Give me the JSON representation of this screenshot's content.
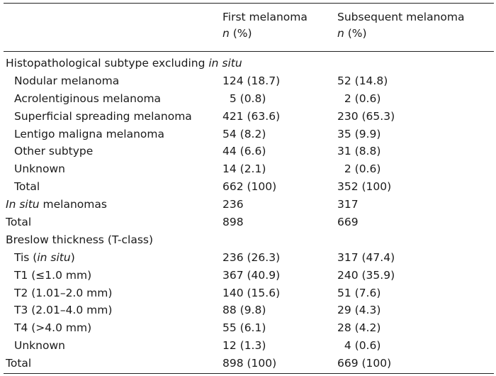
{
  "header": {
    "col1_title": "First melanoma",
    "col1_unit_n": "n",
    "col1_unit_rest": " (%)",
    "col2_title": "Subsequent melanoma",
    "col2_unit_n": "n",
    "col2_unit_rest": " (%)"
  },
  "rows": [
    {
      "label_pre": "Histopathological subtype excluding ",
      "label_ital": "in situ",
      "label_post": "",
      "indent": false,
      "first": "",
      "subsequent": ""
    },
    {
      "label_pre": "Nodular melanoma",
      "label_ital": "",
      "label_post": "",
      "indent": true,
      "first": "124 (18.7)",
      "subsequent": "52 (14.8)"
    },
    {
      "label_pre": "Acrolentiginous melanoma",
      "label_ital": "",
      "label_post": "",
      "indent": true,
      "first": "  5 (0.8)",
      "subsequent": "  2 (0.6)"
    },
    {
      "label_pre": "Superficial spreading melanoma",
      "label_ital": "",
      "label_post": "",
      "indent": true,
      "first": "421 (63.6)",
      "subsequent": "230 (65.3)"
    },
    {
      "label_pre": "Lentigo maligna melanoma",
      "label_ital": "",
      "label_post": "",
      "indent": true,
      "first": "54 (8.2)",
      "subsequent": "35 (9.9)"
    },
    {
      "label_pre": "Other subtype",
      "label_ital": "",
      "label_post": "",
      "indent": true,
      "first": "44 (6.6)",
      "subsequent": "31 (8.8)"
    },
    {
      "label_pre": "Unknown",
      "label_ital": "",
      "label_post": "",
      "indent": true,
      "first": "14 (2.1)",
      "subsequent": "  2 (0.6)"
    },
    {
      "label_pre": "Total",
      "label_ital": "",
      "label_post": "",
      "indent": true,
      "first": "662 (100)",
      "subsequent": "352 (100)"
    },
    {
      "label_pre": "",
      "label_ital": "In situ",
      "label_post": " melanomas",
      "indent": false,
      "first": "236",
      "subsequent": "317"
    },
    {
      "label_pre": "Total",
      "label_ital": "",
      "label_post": "",
      "indent": false,
      "first": "898",
      "subsequent": "669"
    },
    {
      "label_pre": "Breslow thickness (T-class)",
      "label_ital": "",
      "label_post": "",
      "indent": false,
      "first": "",
      "subsequent": ""
    },
    {
      "label_pre": "Tis (",
      "label_ital": "in situ",
      "label_post": ")",
      "indent": true,
      "first": "236 (26.3)",
      "subsequent": "317 (47.4)"
    },
    {
      "label_pre": "T1 (≤1.0 mm)",
      "label_ital": "",
      "label_post": "",
      "indent": true,
      "first": "367 (40.9)",
      "subsequent": "240 (35.9)"
    },
    {
      "label_pre": "T2 (1.01–2.0 mm)",
      "label_ital": "",
      "label_post": "",
      "indent": true,
      "first": "140 (15.6)",
      "subsequent": "51 (7.6)"
    },
    {
      "label_pre": "T3 (2.01–4.0 mm)",
      "label_ital": "",
      "label_post": "",
      "indent": true,
      "first": "88 (9.8)",
      "subsequent": "29 (4.3)"
    },
    {
      "label_pre": "T4 (>4.0 mm)",
      "label_ital": "",
      "label_post": "",
      "indent": true,
      "first": "55 (6.1)",
      "subsequent": "28 (4.2)"
    },
    {
      "label_pre": "Unknown",
      "label_ital": "",
      "label_post": "",
      "indent": true,
      "first": "12 (1.3)",
      "subsequent": "  4 (0.6)"
    },
    {
      "label_pre": "Total",
      "label_ital": "",
      "label_post": "",
      "indent": false,
      "first": "898 (100)",
      "subsequent": "669 (100)"
    }
  ]
}
